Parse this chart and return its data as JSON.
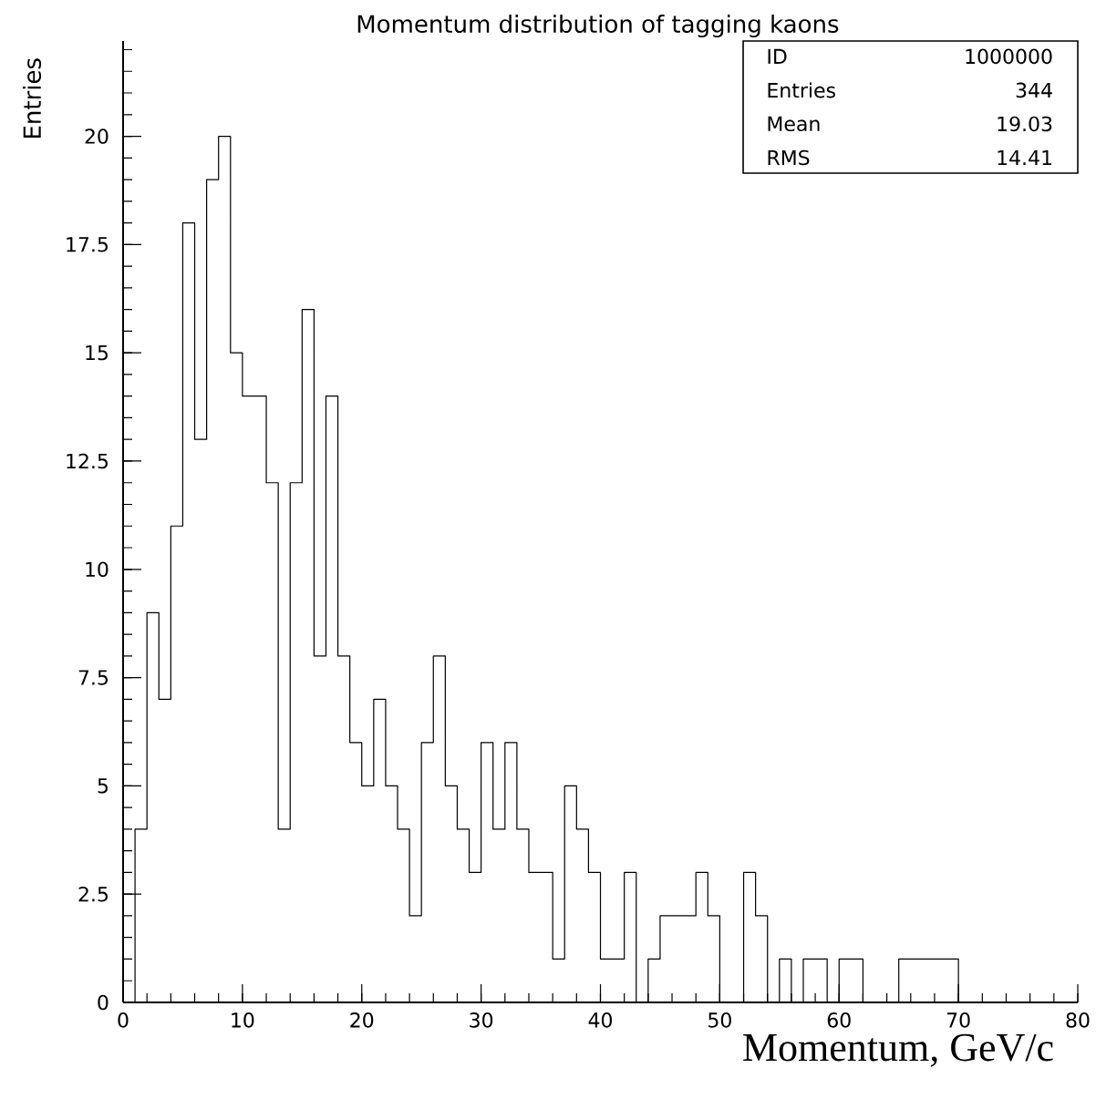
{
  "chart_data": {
    "type": "histogram",
    "title": "Momentum distribution of tagging kaons",
    "xlabel": "Momentum, GeV/c",
    "ylabel": "Entries",
    "bins": [
      1,
      2,
      3,
      4,
      5,
      6,
      7,
      8,
      9,
      10,
      11,
      12,
      13,
      14,
      15,
      16,
      17,
      18,
      19,
      20,
      21,
      22,
      23,
      24,
      25,
      26,
      27,
      28,
      29,
      30,
      31,
      32,
      33,
      34,
      35,
      36,
      37,
      38,
      39,
      40,
      41,
      42,
      43,
      44,
      45,
      46,
      47,
      48,
      49,
      50,
      51,
      52,
      53,
      54,
      55,
      56,
      57,
      58,
      59,
      60,
      61,
      62,
      63,
      64,
      65,
      66,
      67,
      68,
      69,
      70
    ],
    "values": [
      4,
      9,
      7,
      11,
      18,
      13,
      19,
      20,
      15,
      14,
      14,
      12,
      4,
      12,
      16,
      8,
      14,
      8,
      6,
      5,
      7,
      5,
      4,
      2,
      6,
      8,
      5,
      4,
      3,
      6,
      4,
      6,
      4,
      3,
      3,
      1,
      5,
      4,
      3,
      1,
      1,
      3,
      0,
      1,
      2,
      2,
      2,
      3,
      2,
      0,
      0,
      3,
      2,
      0,
      1,
      0,
      1,
      1,
      0,
      1,
      1,
      0,
      0,
      0,
      1,
      1,
      1,
      1,
      1
    ],
    "color": "#000000",
    "xlim": [
      0,
      80
    ],
    "xticks": [
      0,
      {
        "value": 2,
        "label": null
      },
      {
        "value": 4,
        "label": null
      },
      {
        "value": 6,
        "label": null
      },
      {
        "value": 8,
        "label": null
      },
      10,
      {
        "value": 12,
        "label": null
      },
      {
        "value": 14,
        "label": null
      },
      {
        "value": 16,
        "label": null
      },
      {
        "value": 18,
        "label": null
      },
      20,
      {
        "value": 22,
        "label": null
      },
      {
        "value": 24,
        "label": null
      },
      {
        "value": 26,
        "label": null
      },
      {
        "value": 28,
        "label": null
      },
      30,
      {
        "value": 32,
        "label": null
      },
      {
        "value": 34,
        "label": null
      },
      {
        "value": 36,
        "label": null
      },
      {
        "value": 38,
        "label": null
      },
      40,
      {
        "value": 42,
        "label": null
      },
      {
        "value": 44,
        "label": null
      },
      {
        "value": 46,
        "label": null
      },
      {
        "value": 48,
        "label": null
      },
      50,
      {
        "value": 52,
        "label": null
      },
      {
        "value": 54,
        "label": null
      },
      {
        "value": 56,
        "label": null
      },
      {
        "value": 58,
        "label": null
      },
      60,
      {
        "value": 62,
        "label": null
      },
      {
        "value": 64,
        "label": null
      },
      {
        "value": 66,
        "label": null
      },
      {
        "value": 68,
        "label": null
      },
      70,
      {
        "value": 72,
        "label": null
      },
      {
        "value": 74,
        "label": null
      },
      {
        "value": 76,
        "label": null
      },
      {
        "value": 78,
        "label": null
      },
      80
    ],
    "ylim": [
      0,
      22.2
    ],
    "yticks": [
      0,
      {
        "value": 0.5,
        "label": null
      },
      {
        "value": 1,
        "label": null
      },
      {
        "value": 1.5,
        "label": null
      },
      {
        "value": 2,
        "label": null
      },
      2.5,
      {
        "value": 3,
        "label": null
      },
      {
        "value": 3.5,
        "label": null
      },
      {
        "value": 4,
        "label": null
      },
      {
        "value": 4.5,
        "label": null
      },
      5,
      {
        "value": 5.5,
        "label": null
      },
      {
        "value": 6,
        "label": null
      },
      {
        "value": 6.5,
        "label": null
      },
      {
        "value": 7,
        "label": null
      },
      7.5,
      {
        "value": 8,
        "label": null
      },
      {
        "value": 8.5,
        "label": null
      },
      {
        "value": 9,
        "label": null
      },
      {
        "value": 9.5,
        "label": null
      },
      10,
      {
        "value": 10.5,
        "label": null
      },
      {
        "value": 11,
        "label": null
      },
      {
        "value": 11.5,
        "label": null
      },
      {
        "value": 12,
        "label": null
      },
      12.5,
      {
        "value": 13,
        "label": null
      },
      {
        "value": 13.5,
        "label": null
      },
      {
        "value": 14,
        "label": null
      },
      {
        "value": 14.5,
        "label": null
      },
      15,
      {
        "value": 15.5,
        "label": null
      },
      {
        "value": 16,
        "label": null
      },
      {
        "value": 16.5,
        "label": null
      },
      {
        "value": 17,
        "label": null
      },
      17.5,
      {
        "value": 18,
        "label": null
      },
      {
        "value": 18.5,
        "label": null
      },
      {
        "value": 19,
        "label": null
      },
      {
        "value": 19.5,
        "label": null
      },
      20,
      {
        "value": 20.5,
        "label": null
      },
      {
        "value": 21,
        "label": null
      },
      {
        "value": 21.5,
        "label": null
      },
      {
        "value": 22,
        "label": null
      }
    ],
    "grid": false,
    "annotations": [
      "ID",
      "1000000",
      "Entries",
      "344",
      "Mean",
      "19.03",
      "RMS",
      "14.41"
    ]
  }
}
